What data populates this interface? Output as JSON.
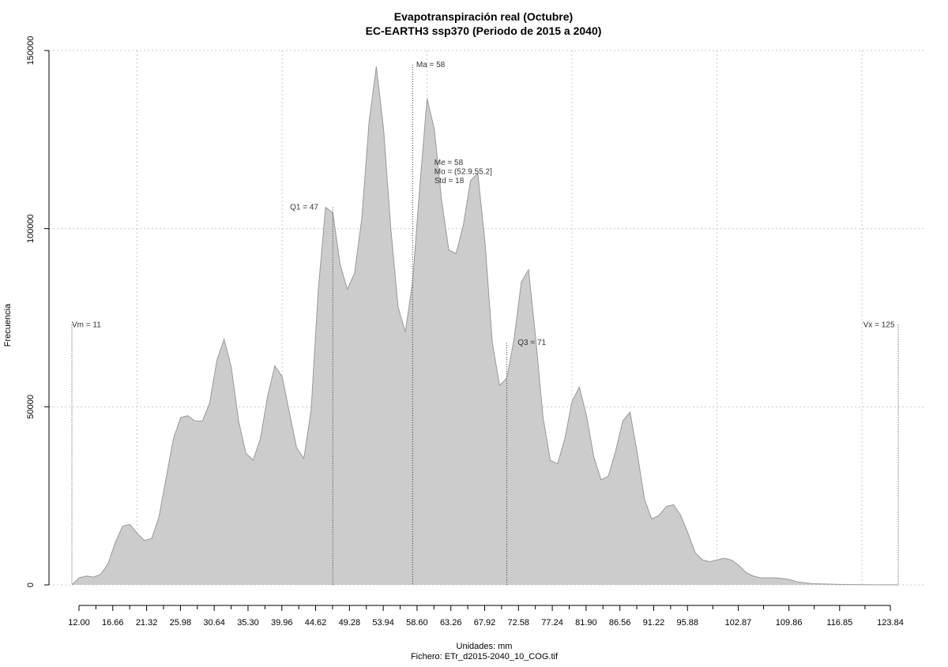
{
  "chart_data": {
    "type": "area",
    "title": "Evapotranspiración real (Octubre)",
    "subtitle": "EC-EARTH3 ssp370 (Periodo de 2015 a 2040)",
    "xlabel": "Unidades: mm",
    "ylabel": "Frecuencia",
    "footer": "Fichero: ETr_d2015-2040_10_COG.tif",
    "xlim": [
      11,
      125
    ],
    "ylim": [
      0,
      150000
    ],
    "grid": true,
    "fill_color": "#cccccc",
    "line_color": "#999999",
    "x_ticks": [
      {
        "value": 12.0,
        "label": "12.00"
      },
      {
        "value": 16.66,
        "label": "16.66"
      },
      {
        "value": 21.32,
        "label": "21.32"
      },
      {
        "value": 25.98,
        "label": "25.98"
      },
      {
        "value": 30.64,
        "label": "30.64"
      },
      {
        "value": 35.3,
        "label": "35.30"
      },
      {
        "value": 39.96,
        "label": "39.96"
      },
      {
        "value": 44.62,
        "label": "44.62"
      },
      {
        "value": 49.28,
        "label": "49.28"
      },
      {
        "value": 53.94,
        "label": "53.94"
      },
      {
        "value": 58.6,
        "label": "58.60"
      },
      {
        "value": 63.26,
        "label": "63.26"
      },
      {
        "value": 67.92,
        "label": "67.92"
      },
      {
        "value": 72.58,
        "label": "72.58"
      },
      {
        "value": 77.24,
        "label": "77.24"
      },
      {
        "value": 81.9,
        "label": "81.90"
      },
      {
        "value": 86.56,
        "label": "86.56"
      },
      {
        "value": 91.22,
        "label": "91.22"
      },
      {
        "value": 95.88,
        "label": "95.88"
      },
      {
        "value": 102.87,
        "label": "102.87"
      },
      {
        "value": 109.86,
        "label": "109.86"
      },
      {
        "value": 116.85,
        "label": "116.85"
      },
      {
        "value": 123.84,
        "label": "123.84"
      }
    ],
    "y_ticks": [
      {
        "value": 0,
        "label": "0"
      },
      {
        "value": 50000,
        "label": "50000"
      },
      {
        "value": 100000,
        "label": "100000"
      },
      {
        "value": 150000,
        "label": "150000"
      }
    ],
    "x": [
      11,
      12,
      13,
      14,
      15,
      16,
      17,
      18,
      19,
      20,
      21,
      22,
      23,
      24,
      25,
      26,
      27,
      28,
      29,
      30,
      31,
      32,
      33,
      34,
      35,
      36,
      37,
      38,
      39,
      40,
      41,
      42,
      43,
      44,
      45,
      46,
      47,
      48,
      49,
      50,
      51,
      52,
      53,
      54,
      55,
      56,
      57,
      58,
      59,
      60,
      61,
      62,
      63,
      64,
      65,
      66,
      67,
      68,
      69,
      70,
      71,
      72,
      73,
      74,
      75,
      76,
      77,
      78,
      79,
      80,
      81,
      82,
      83,
      84,
      85,
      86,
      87,
      88,
      89,
      90,
      91,
      92,
      93,
      94,
      95,
      96,
      97,
      98,
      99,
      100,
      101,
      102,
      103,
      104,
      105,
      106,
      107,
      108,
      109,
      110,
      111,
      112,
      113,
      114,
      115,
      116,
      117,
      118,
      119,
      120,
      121,
      122,
      123,
      124,
      125
    ],
    "values": [
      0,
      2000,
      2500,
      2200,
      3000,
      6000,
      12000,
      16500,
      17000,
      14500,
      12500,
      13000,
      19000,
      30000,
      41000,
      47000,
      47500,
      46000,
      46000,
      51000,
      63000,
      69000,
      61000,
      46000,
      37000,
      35000,
      41000,
      53000,
      61500,
      58500,
      48500,
      38500,
      35500,
      49000,
      83000,
      106000,
      104500,
      90000,
      83000,
      87500,
      103000,
      130000,
      145500,
      128000,
      100000,
      78000,
      71000,
      85000,
      112000,
      136500,
      128000,
      108000,
      94000,
      93000,
      101000,
      113500,
      115500,
      96000,
      68000,
      56000,
      58000,
      69000,
      85000,
      88500,
      69000,
      47000,
      35000,
      34000,
      41000,
      51500,
      55500,
      47500,
      36000,
      29500,
      30500,
      37500,
      46000,
      48500,
      37000,
      24000,
      18500,
      19500,
      22000,
      22500,
      19500,
      14500,
      9000,
      7000,
      6500,
      7000,
      7500,
      7000,
      5500,
      3500,
      2500,
      2000,
      2000,
      2000,
      1800,
      1500,
      900,
      600,
      400,
      300,
      250,
      200,
      150,
      100,
      80,
      60,
      50,
      40,
      30,
      20,
      0
    ],
    "annotations": [
      {
        "label": "Vm = 11",
        "x": 11,
        "line_top": 73000,
        "text_x": 11,
        "text_y": 73000,
        "anchor": "start",
        "style": "dotted"
      },
      {
        "label": "Q1 = 47",
        "x": 47,
        "line_top": 106000,
        "text_x": 45,
        "text_y": 106000,
        "anchor": "end",
        "style": "dotted"
      },
      {
        "label": "Ma = 58",
        "x": 58,
        "line_top": 146000,
        "text_x": 58.5,
        "text_y": 146000,
        "anchor": "start",
        "style": "dotted"
      },
      {
        "label": "Q3 = 71",
        "x": 71,
        "line_top": 68000,
        "text_x": 72.5,
        "text_y": 68000,
        "anchor": "start",
        "style": "dotted"
      },
      {
        "label": "Vx = 125",
        "x": 125,
        "line_top": 73000,
        "text_x": 124.5,
        "text_y": 73000,
        "anchor": "end",
        "style": "dotted"
      }
    ],
    "stats": {
      "x": 61,
      "y": 118500,
      "lines": [
        "Me = 58",
        "Mo = (52.9,55.2]",
        "Std = 18"
      ]
    }
  }
}
